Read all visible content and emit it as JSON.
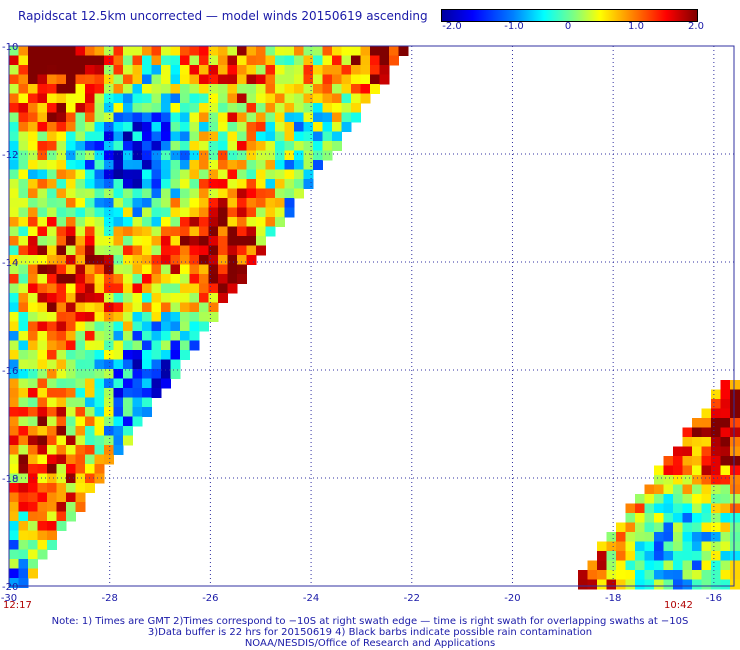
{
  "title": "Rapidscat 12.5km uncorrected — model winds 20150619 ascending",
  "colorbar": {
    "labels": [
      "-2.0",
      "-1.0",
      "0",
      "1.0",
      "2.0"
    ],
    "stops": [
      "#0000a0",
      "#0000ff",
      "#0080ff",
      "#00ffff",
      "#80ff80",
      "#ffff00",
      "#ff8000",
      "#ff0000",
      "#800000"
    ]
  },
  "axes": {
    "lon_labels": [
      "-30",
      "-28",
      "-26",
      "-24",
      "-22",
      "-20",
      "-18",
      "-16"
    ],
    "lat_labels": [
      "-10",
      "-12",
      "-14",
      "-16",
      "-18",
      "-20"
    ],
    "lon_values": [
      -30,
      -28,
      -26,
      -24,
      -22,
      -20,
      -18,
      -16
    ],
    "lat_values": [
      -10,
      -12,
      -14,
      -16,
      -18,
      -20
    ],
    "lon_range": [
      -30,
      -15.6
    ],
    "lat_range": [
      -20,
      -10
    ],
    "grid": "dotted"
  },
  "times": {
    "left": "12:17",
    "right": "10:42"
  },
  "notes": {
    "line1": "Note: 1) Times are GMT 2)Times correspond to −10S at right swath edge — time is right swath for overlapping swaths at −10S",
    "line2": "3)Data buffer is 22 hrs for 20150619 4) Black barbs indicate possible rain contamination",
    "line3": "NOAA/NESDIS/Office of Research and Applications"
  }
}
